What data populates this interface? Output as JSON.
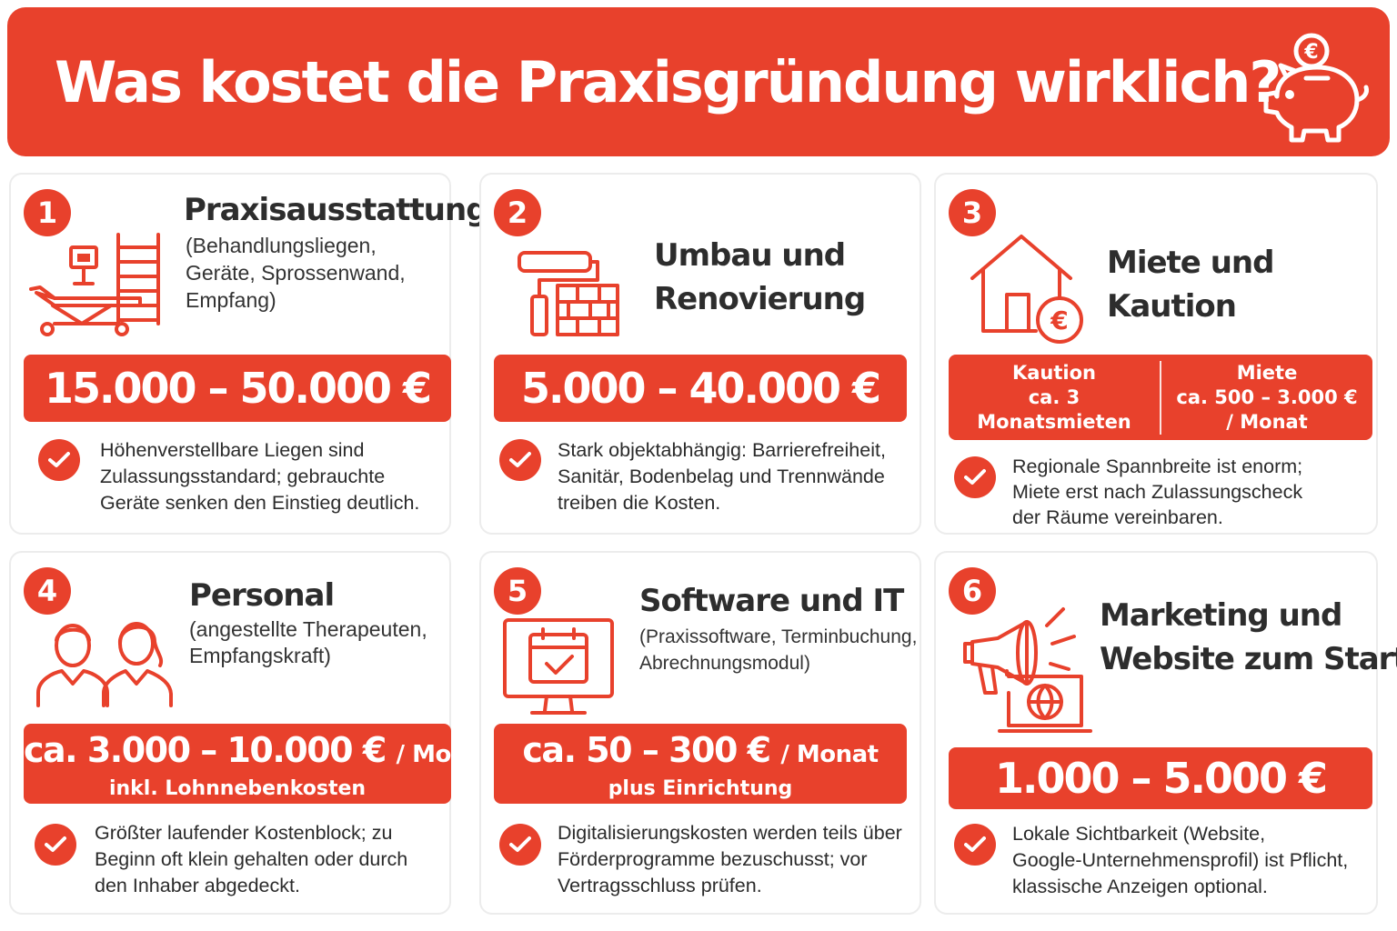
{
  "header": {
    "title": "Was kostet die Praxisgründung wirklich?",
    "icon": "piggy-bank-euro-icon"
  },
  "colors": {
    "accent": "#e8412c",
    "background": "#ffffff",
    "card_border": "#ececec",
    "text": "#2b2b2b"
  },
  "cards": [
    {
      "number": "1",
      "icon": "treatment-bed-and-equipment-icon",
      "title_lines": [
        "Praxisausstattung"
      ],
      "subtitle_lines": [
        "(Behandlungsliegen,",
        "Geräte, Sprossenwand,",
        "Empfang)"
      ],
      "price": "15.000 – 50.000 €",
      "note_lines": [
        "Höhenverstellbare Liegen sind",
        "Zulassungsstandard; gebrauchte",
        "Geräte senken den Einstieg deutlich."
      ]
    },
    {
      "number": "2",
      "icon": "paint-roller-and-bricks-icon",
      "title_lines": [
        "Umbau und",
        "Renovierung"
      ],
      "price": "5.000 – 40.000 €",
      "note_lines": [
        "Stark objektabhängig: Barrierefreiheit,",
        "Sanitär, Bodenbelag und Trennwände",
        "treiben die Kosten."
      ]
    },
    {
      "number": "3",
      "icon": "house-with-euro-icon",
      "title_lines": [
        "Miete und",
        "Kaution"
      ],
      "deposit": {
        "label": "Kaution",
        "value": "ca. 3 Monatsmieten"
      },
      "rent": {
        "label": "Miete",
        "value": "ca. 500 – 3.000 €",
        "per": "/ Monat"
      },
      "note_lines": [
        "Regionale Spannbreite ist enorm;",
        "Miete erst nach Zulassungscheck",
        "der Räume vereinbaren."
      ]
    },
    {
      "number": "4",
      "icon": "staff-people-icon",
      "title_lines": [
        "Personal"
      ],
      "subtitle_lines": [
        "(angestellte Therapeuten,",
        "Empfangskraft)"
      ],
      "price": "ca. 3.000 – 10.000 €",
      "price_unit": "/ Monat",
      "price_note": "inkl. Lohnnebenkosten",
      "note_lines": [
        "Größter laufender Kostenblock; zu",
        "Beginn oft klein gehalten oder durch",
        "den Inhaber abgedeckt."
      ]
    },
    {
      "number": "5",
      "icon": "monitor-calendar-icon",
      "title_lines": [
        "Software und IT"
      ],
      "subtitle_lines": [
        "(Praxissoftware, Terminbuchung,",
        "Abrechnungsmodul)"
      ],
      "price": "ca. 50 – 300 €",
      "price_unit": "/ Monat",
      "price_note": "plus Einrichtung",
      "note_lines": [
        "Digitalisierungskosten werden teils über",
        "Förderprogramme bezuschusst; vor",
        "Vertragsschluss prüfen."
      ]
    },
    {
      "number": "6",
      "icon": "megaphone-laptop-globe-icon",
      "title_lines": [
        "Marketing und",
        "Website zum Start"
      ],
      "price": "1.000 – 5.000 €",
      "note_lines": [
        "Lokale Sichtbarkeit (Website,",
        "Google-Unternehmensprofil) ist Pflicht,",
        "klassische Anzeigen optional."
      ]
    }
  ]
}
